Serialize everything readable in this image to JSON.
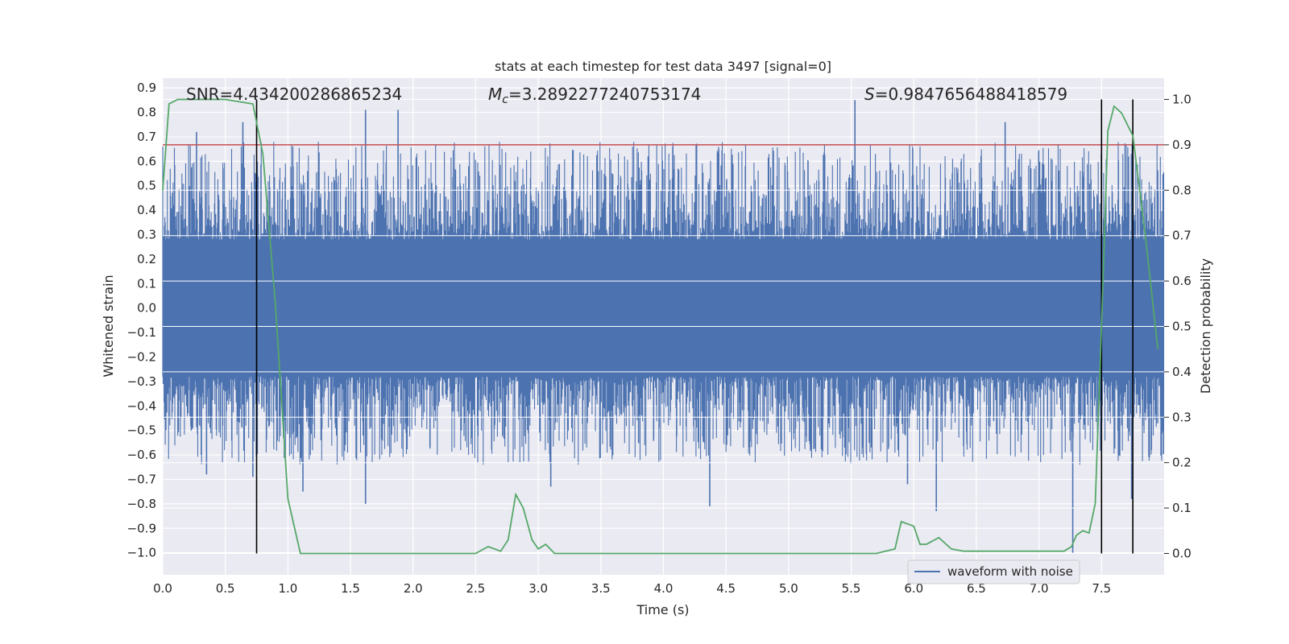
{
  "chart_data": {
    "type": "line",
    "title": "stats at each timestep for test data 3497 [signal=0]",
    "xlabel": "Time (s)",
    "ylabel_left": "Whitened strain",
    "ylabel_right": "Detection probability",
    "xlim": [
      0.0,
      8.0
    ],
    "ylim_left": [
      -1.09,
      0.94
    ],
    "ylim_right": [
      -0.047,
      1.047
    ],
    "x_ticks": [
      "0.0",
      "0.5",
      "1.0",
      "1.5",
      "2.0",
      "2.5",
      "3.0",
      "3.5",
      "4.0",
      "4.5",
      "5.0",
      "5.5",
      "6.0",
      "6.5",
      "7.0",
      "7.5"
    ],
    "y_left_ticks": [
      "-1.0",
      "-0.9",
      "-0.8",
      "-0.7",
      "-0.6",
      "-0.5",
      "-0.4",
      "-0.3",
      "-0.2",
      "-0.1",
      "0.0",
      "0.1",
      "0.2",
      "0.3",
      "0.4",
      "0.5",
      "0.6",
      "0.7",
      "0.8",
      "0.9"
    ],
    "y_right_ticks": [
      "0.0",
      "0.1",
      "0.2",
      "0.3",
      "0.4",
      "0.5",
      "0.6",
      "0.7",
      "0.8",
      "0.9",
      "1.0"
    ],
    "grid": true,
    "annotations": {
      "snr": "SNR=4.434200286865234",
      "mc_value": "=3.2892277240753174",
      "s_value": "=0.9847656488418579"
    },
    "threshold": {
      "value": 0.9,
      "axis": "right",
      "color": "#c44e52"
    },
    "vertical_lines": [
      0.75,
      7.5,
      7.75
    ],
    "legend": {
      "label": "waveform with noise",
      "position": "lower-right"
    },
    "series": [
      {
        "name": "waveform with noise",
        "color": "#4c72b0",
        "axis": "left",
        "envelope_note": "dense noise, typical range about -0.35 to 0.35 with spikes",
        "spikes": [
          {
            "x": 0.27,
            "y": 0.72
          },
          {
            "x": 0.64,
            "y": 0.76
          },
          {
            "x": 1.62,
            "y": 0.81
          },
          {
            "x": 1.88,
            "y": 0.81
          },
          {
            "x": 5.53,
            "y": 0.85
          },
          {
            "x": 6.73,
            "y": 0.76
          },
          {
            "x": 0.72,
            "y": -0.69
          },
          {
            "x": 1.12,
            "y": -0.75
          },
          {
            "x": 1.62,
            "y": -0.8
          },
          {
            "x": 3.1,
            "y": -0.73
          },
          {
            "x": 4.37,
            "y": -0.81
          },
          {
            "x": 6.18,
            "y": -0.83
          },
          {
            "x": 7.27,
            "y": -1.0
          },
          {
            "x": 7.74,
            "y": -0.78
          },
          {
            "x": 0.35,
            "y": -0.68
          },
          {
            "x": 5.95,
            "y": -0.72
          }
        ]
      },
      {
        "name": "detection probability",
        "color": "#55a868",
        "axis": "right",
        "x": [
          0.0,
          0.05,
          0.12,
          0.25,
          0.5,
          0.72,
          0.8,
          0.9,
          1.0,
          1.1,
          1.2,
          1.3,
          1.4,
          1.5,
          1.6,
          1.7,
          1.8,
          1.9,
          2.0,
          2.1,
          2.2,
          2.3,
          2.4,
          2.5,
          2.6,
          2.7,
          2.76,
          2.82,
          2.88,
          2.95,
          3.0,
          3.06,
          3.13,
          3.2,
          3.3,
          3.5,
          3.7,
          3.9,
          4.1,
          4.3,
          4.5,
          4.7,
          4.9,
          5.1,
          5.3,
          5.5,
          5.7,
          5.85,
          5.9,
          5.95,
          6.0,
          6.05,
          6.1,
          6.2,
          6.3,
          6.4,
          6.6,
          6.8,
          7.0,
          7.2,
          7.26,
          7.3,
          7.35,
          7.4,
          7.45,
          7.5,
          7.55,
          7.6,
          7.66,
          7.75,
          7.85,
          7.95
        ],
        "values": [
          0.8,
          0.99,
          1.0,
          1.0,
          1.0,
          0.99,
          0.88,
          0.55,
          0.12,
          0.0,
          0.0,
          0.0,
          0.0,
          0.0,
          0.0,
          0.0,
          0.0,
          0.0,
          0.0,
          0.0,
          0.0,
          0.0,
          0.0,
          0.0,
          0.015,
          0.005,
          0.03,
          0.13,
          0.1,
          0.03,
          0.01,
          0.02,
          0.0,
          0.0,
          0.0,
          0.0,
          0.0,
          0.0,
          0.0,
          0.0,
          0.0,
          0.0,
          0.0,
          0.0,
          0.0,
          0.0,
          0.0,
          0.01,
          0.07,
          0.065,
          0.06,
          0.02,
          0.02,
          0.035,
          0.01,
          0.005,
          0.005,
          0.005,
          0.005,
          0.005,
          0.015,
          0.04,
          0.05,
          0.045,
          0.11,
          0.5,
          0.93,
          0.985,
          0.97,
          0.92,
          0.7,
          0.45
        ]
      }
    ]
  }
}
